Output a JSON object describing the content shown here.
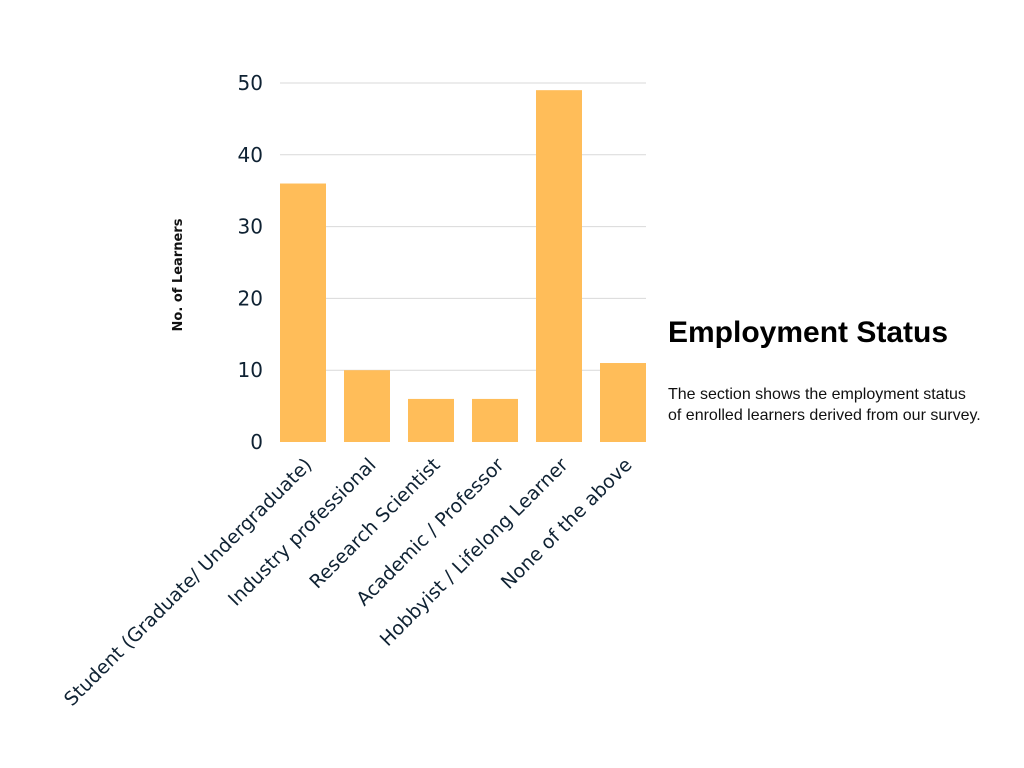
{
  "section": {
    "title": "Employment Status",
    "description_lines": [
      "The section shows the employment status",
      "of enrolled learners derived from our survey."
    ]
  },
  "chart_data": {
    "type": "bar",
    "title": "",
    "xlabel": "",
    "ylabel": "No. of Learners",
    "categories": [
      "Student (Graduate/ Undergraduate)",
      "Industry professional",
      "Research Scientist",
      "Academic / Professor",
      "Hobbyist / Lifelong Learner",
      "None of the above"
    ],
    "values": [
      36,
      10,
      6,
      6,
      49,
      11
    ],
    "ylim": [
      0,
      50
    ],
    "yticks": [
      0,
      10,
      20,
      30,
      40,
      50
    ],
    "grid": true,
    "legend": "none",
    "bar_color": "#ffbd59"
  }
}
